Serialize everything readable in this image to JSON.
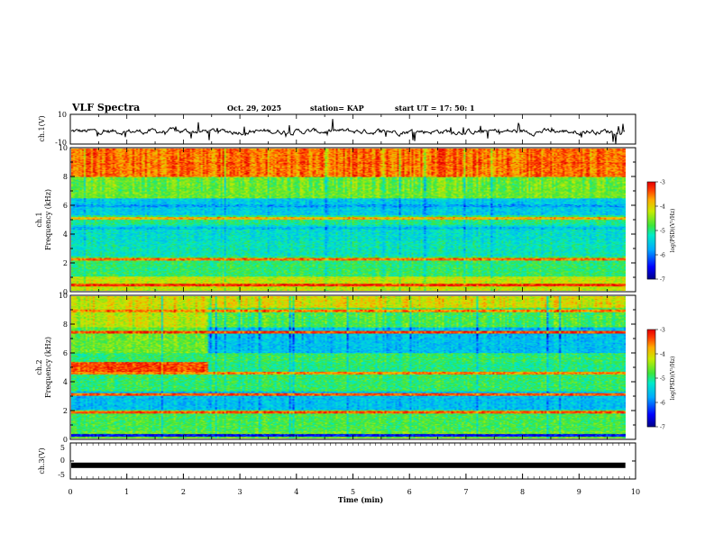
{
  "header": {
    "title": "VLF Spectra",
    "date": "Oct. 29, 2025",
    "station": "station= KAP",
    "start": "start  UT  =   17: 50: 1"
  },
  "chart_data": [
    {
      "type": "line",
      "name": "ch1-waveform",
      "ylabel": "ch.1(V)",
      "ylim": [
        -10,
        10
      ],
      "yticks": [
        "10",
        "-10"
      ],
      "xlim": [
        0,
        10
      ],
      "x_end": 9.82,
      "description_values": {
        "mean": -1.5,
        "amplitude": 4
      }
    },
    {
      "type": "heatmap",
      "name": "ch1-spectrogram",
      "ylabel": "ch.1\nFrequency (kHz)",
      "ylabel_line1": "ch.1",
      "ylabel_line2": "Frequency (kHz)",
      "ylim": [
        0,
        10
      ],
      "yticks": [
        "0",
        "2",
        "4",
        "6",
        "8",
        "10"
      ],
      "xlim": [
        0,
        10
      ],
      "x_end": 9.82,
      "colorbar": {
        "min": -7,
        "max": -3,
        "ticks": [
          "-3",
          "-4",
          "-5",
          "-6",
          "-7"
        ],
        "label": "log(PSD)(V²/Hz)"
      },
      "bands": [
        {
          "f": 9.0,
          "level": -3.4
        },
        {
          "f": 6.0,
          "level": -5.8
        },
        {
          "f": 5.1,
          "level": -3.8
        },
        {
          "f": 4.4,
          "level": -5.6
        },
        {
          "f": 2.2,
          "level": -3.5
        },
        {
          "f": 0.4,
          "level": -3.2
        }
      ]
    },
    {
      "type": "heatmap",
      "name": "ch2-spectrogram",
      "ylabel_line1": "ch.2",
      "ylabel_line2": "Frequency (kHz)",
      "ylim": [
        0,
        10
      ],
      "yticks": [
        "0",
        "2",
        "4",
        "6",
        "8",
        "10"
      ],
      "xlim": [
        0,
        10
      ],
      "x_end": 9.82,
      "colorbar": {
        "min": -7,
        "max": -3,
        "ticks": [
          "-3",
          "-4",
          "-5",
          "-6",
          "-7"
        ],
        "label": "log(PSD)(V²/Hz)"
      },
      "bands": [
        {
          "f": 9.0,
          "level": -3.6
        },
        {
          "f": 7.5,
          "level": -3.3
        },
        {
          "f": 5.0,
          "level": -3.3,
          "x_to": 2.42
        },
        {
          "f": 4.6,
          "level": -3.6
        },
        {
          "f": 3.1,
          "level": -3.4
        },
        {
          "f": 1.8,
          "level": -3.4
        },
        {
          "f": 0.2,
          "level": -6.5
        }
      ]
    },
    {
      "type": "line",
      "name": "ch3-waveform",
      "ylabel": "ch.3(V)",
      "ylim": [
        -5,
        5
      ],
      "yticks": [
        "5",
        "0",
        "-5"
      ],
      "xlim": [
        0,
        10
      ],
      "x_end": 9.82,
      "level": -1.2,
      "xlabel": "Time  (min)",
      "xticks": [
        "0",
        "1",
        "2",
        "3",
        "4",
        "5",
        "6",
        "7",
        "8",
        "9",
        "10"
      ]
    }
  ]
}
